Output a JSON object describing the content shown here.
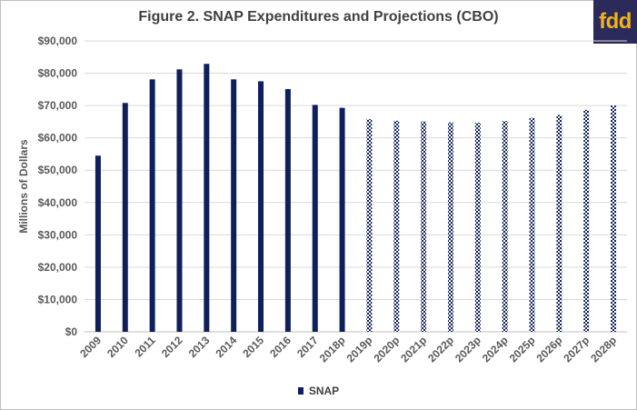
{
  "chart_data": {
    "type": "bar",
    "title": "Figure 2. SNAP Expenditures and Projections (CBO)",
    "ylabel": "Millions of Dollars",
    "xlabel": "",
    "ylim": [
      0,
      90000
    ],
    "yticks": [
      "$0",
      "$10,000",
      "$20,000",
      "$30,000",
      "$40,000",
      "$50,000",
      "$60,000",
      "$70,000",
      "$80,000",
      "$90,000"
    ],
    "categories": [
      "2009",
      "2010",
      "2011",
      "2012",
      "2013",
      "2014",
      "2015",
      "2016",
      "2017",
      "2018p",
      "2019p",
      "2020p",
      "2021p",
      "2022p",
      "2023p",
      "2024p",
      "2025p",
      "2026p",
      "2027p",
      "2028p"
    ],
    "series": [
      {
        "name": "SNAP",
        "values": [
          54500,
          70800,
          78100,
          81200,
          82900,
          78100,
          77500,
          75100,
          70200,
          69300,
          65800,
          65300,
          65100,
          64800,
          64700,
          65200,
          66200,
          67100,
          68700,
          70000
        ],
        "projected_start_index": 10
      }
    ],
    "grid": true,
    "legend_position": "bottom",
    "colors": {
      "bar": "#0f1f5c",
      "grid": "#d9d9d9",
      "text": "#595959"
    }
  },
  "logo": {
    "text": "fdd",
    "bg": "#2c2a5b",
    "color": "#f2b21b"
  }
}
